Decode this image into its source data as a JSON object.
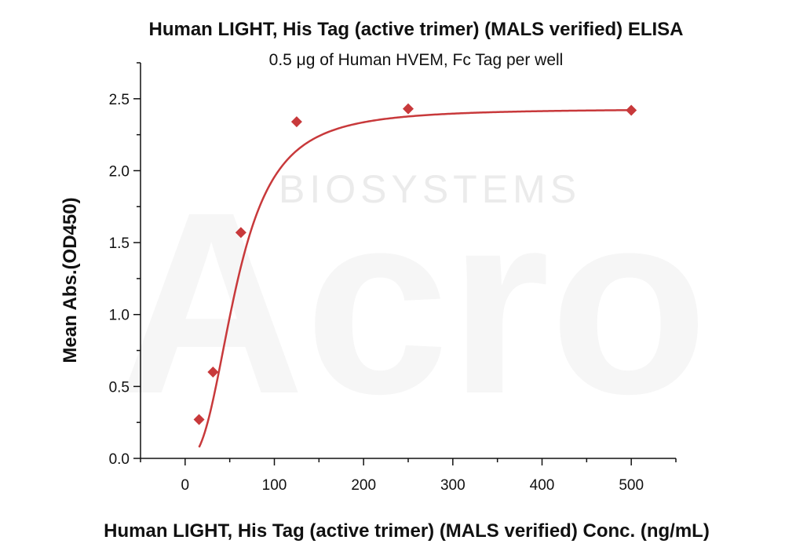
{
  "watermark": {
    "brand": "Acro",
    "sub": "BIOSYSTEMS"
  },
  "colors": {
    "series": "#c8393b",
    "axis": "#111111"
  },
  "chart_data": {
    "type": "scatter",
    "title": "Human LIGHT, His Tag (active trimer) (MALS verified) ELISA",
    "subtitle": "0.5 μg of Human HVEM, Fc Tag per well",
    "xlabel": "Human LIGHT, His Tag (active trimer) (MALS verified) Conc. (ng/mL)",
    "ylabel": "Mean Abs.(OD450)",
    "xlim": [
      -50,
      550
    ],
    "ylim": [
      0,
      2.75
    ],
    "xticks": [
      0,
      100,
      200,
      300,
      400,
      500
    ],
    "xtick_labels": [
      "0",
      "100",
      "200",
      "300",
      "400",
      "500"
    ],
    "yticks": [
      0,
      0.5,
      1.0,
      1.5,
      2.0,
      2.5
    ],
    "ytick_labels": [
      "0.0",
      "0.5",
      "1.0",
      "1.5",
      "2.0",
      "2.5"
    ],
    "grid": false,
    "legend": false,
    "series": [
      {
        "marker": "diamond",
        "fit": "sigmoidal",
        "x": [
          15.6,
          31.25,
          62.5,
          125,
          250,
          500
        ],
        "y": [
          0.27,
          0.6,
          1.57,
          2.34,
          2.43,
          2.42
        ]
      }
    ]
  }
}
